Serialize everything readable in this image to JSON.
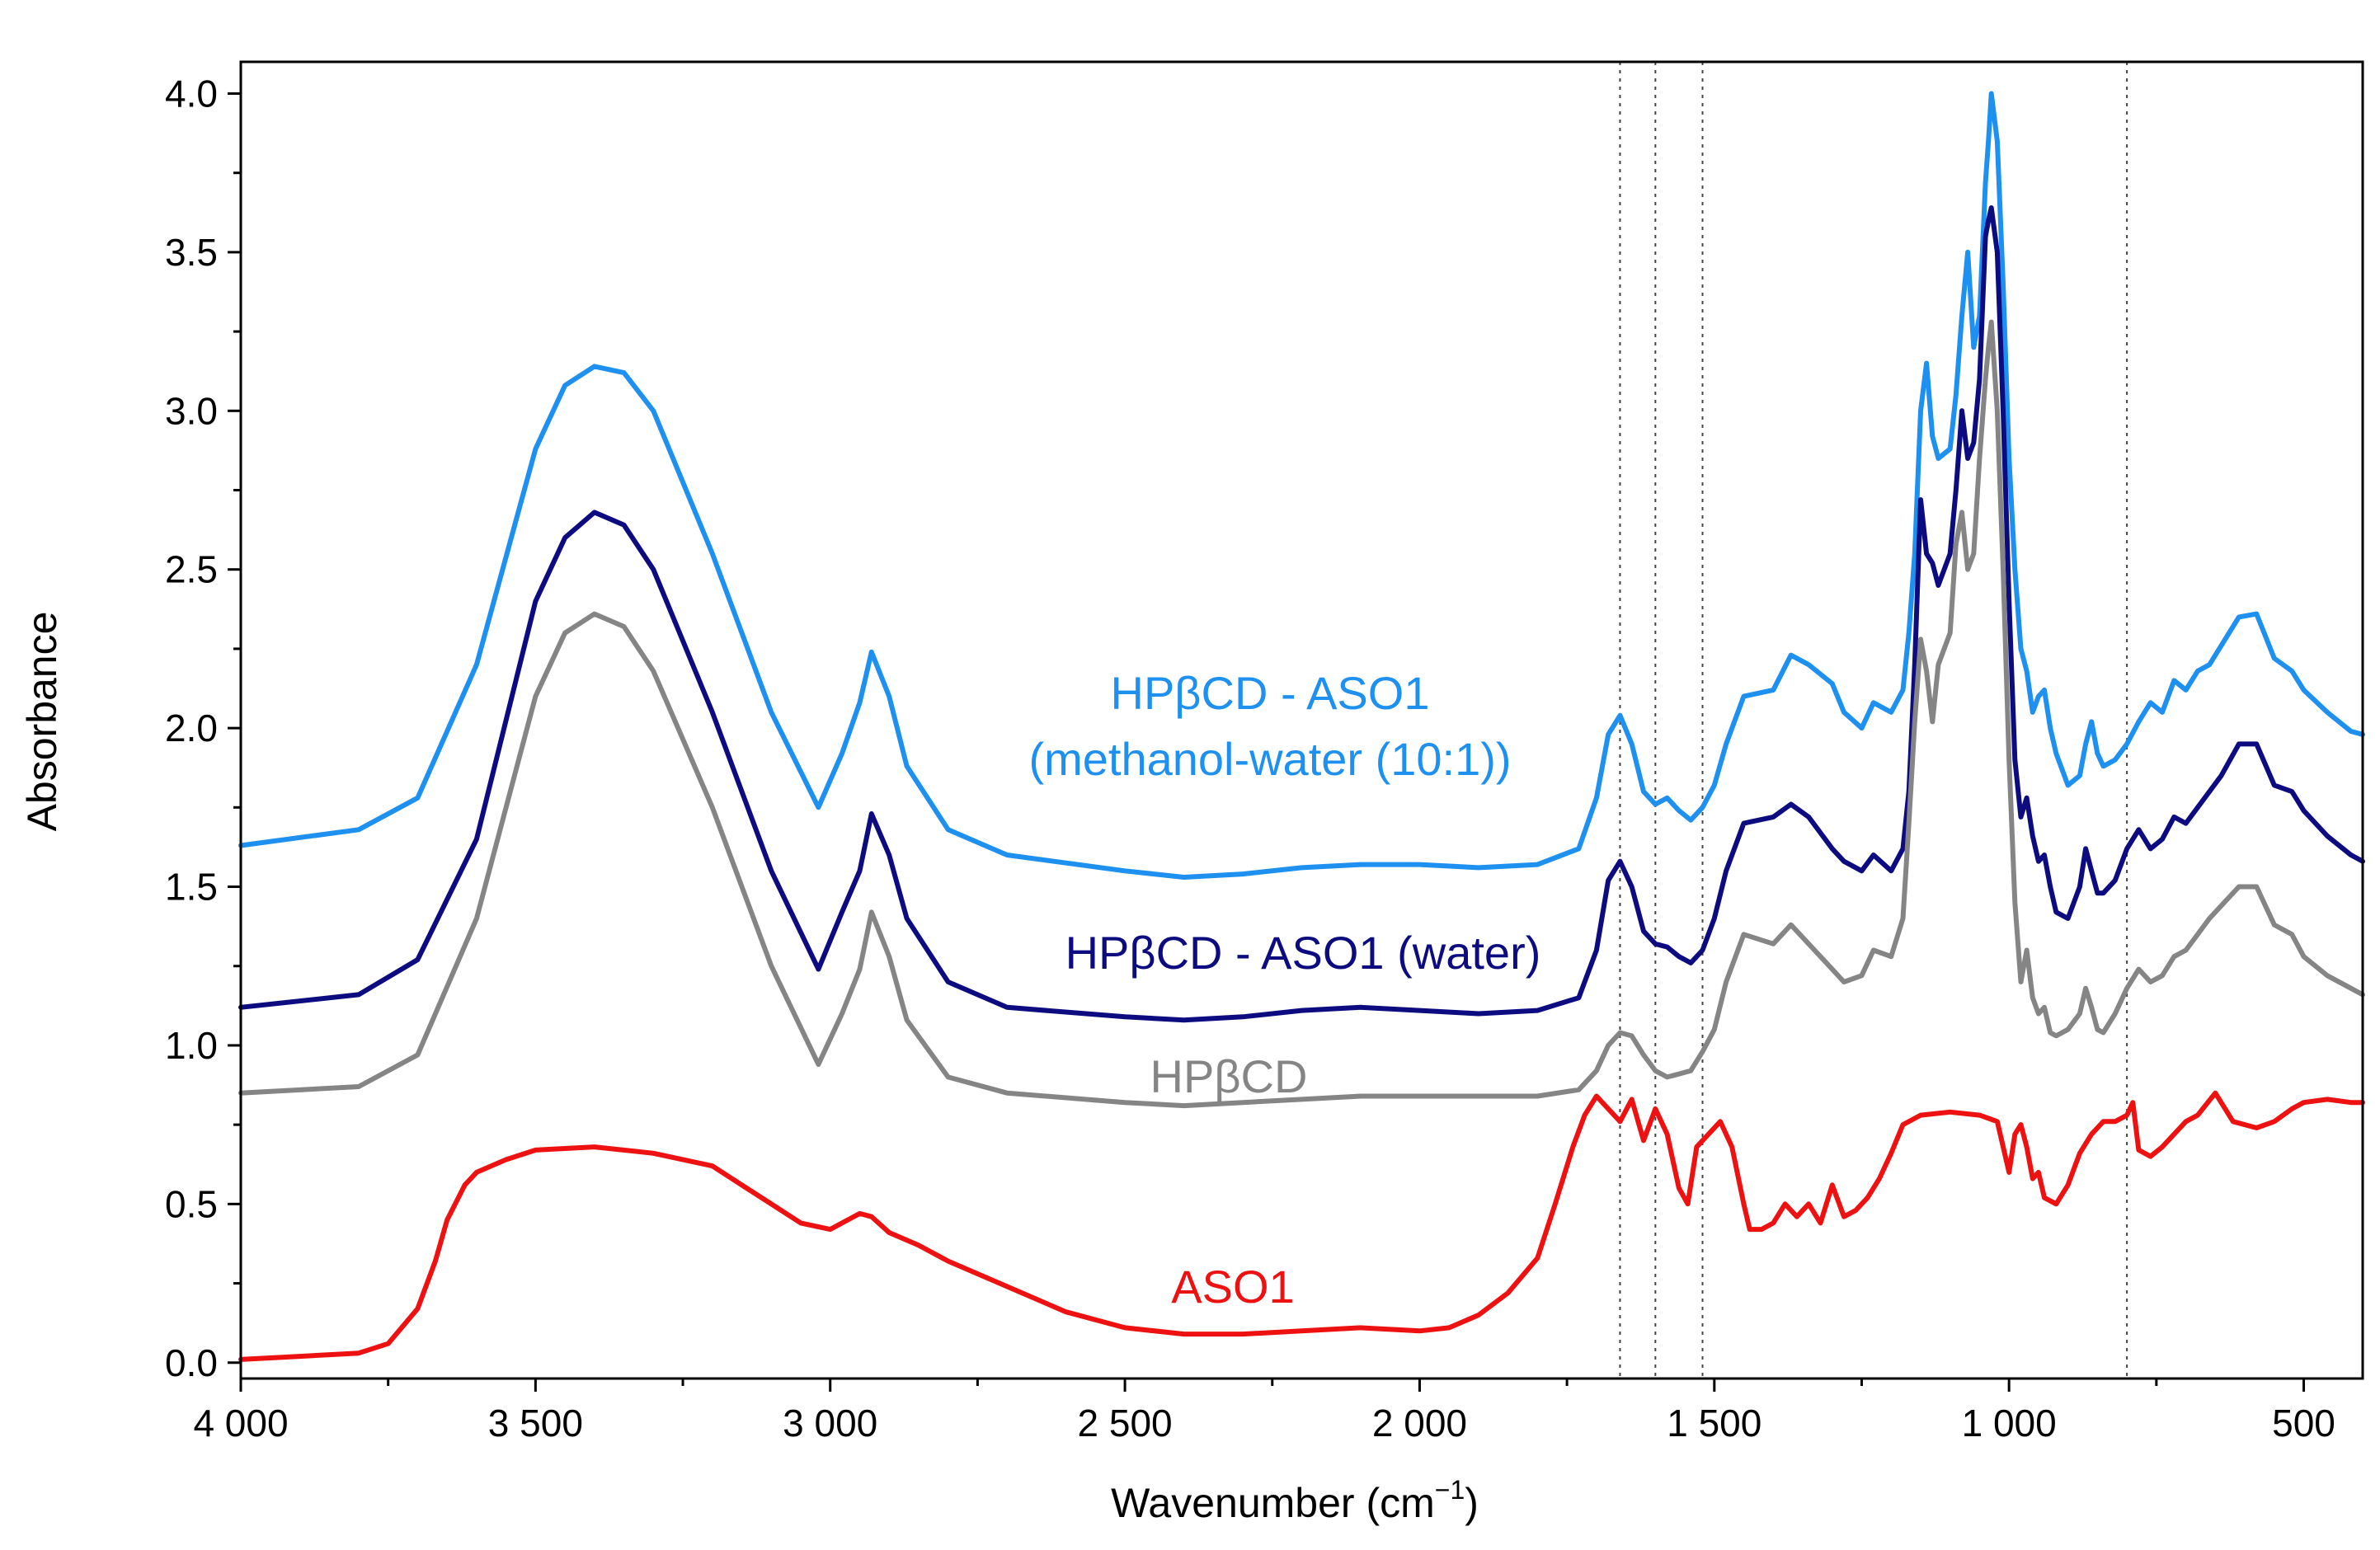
{
  "chart_data": {
    "type": "line",
    "title": "",
    "xlabel": "Wavenumber (cm",
    "xlabel_sup": "−1",
    "xlabel_close": ")",
    "ylabel": "Absorbance",
    "xlim": [
      4000,
      400
    ],
    "ylim": [
      -0.05,
      4.1
    ],
    "x_ticks": [
      4000,
      3500,
      3000,
      2500,
      2000,
      1500,
      1000,
      500
    ],
    "x_tick_labels": [
      "4 000",
      "3 500",
      "3 000",
      "2 500",
      "2 000",
      "1 500",
      "1 000",
      "500"
    ],
    "y_ticks": [
      0.0,
      0.5,
      1.0,
      1.5,
      2.0,
      2.5,
      3.0,
      3.5,
      4.0
    ],
    "y_tick_labels": [
      "0.0",
      "0.5",
      "1.0",
      "1.5",
      "2.0",
      "2.5",
      "3.0",
      "3.5",
      "4.0"
    ],
    "reference_lines": [
      1660,
      1600,
      1520,
      800
    ],
    "series": [
      {
        "name": "HPβCD - ASO1 (methanol-water (10:1))",
        "label_lines": [
          "HPβCD - ASO1",
          "(methanol-water (10:1))"
        ],
        "color": "#1E90F0",
        "x": [
          4000,
          3800,
          3700,
          3600,
          3500,
          3450,
          3400,
          3350,
          3300,
          3200,
          3100,
          3020,
          2980,
          2950,
          2930,
          2900,
          2870,
          2800,
          2700,
          2500,
          2400,
          2300,
          2200,
          2100,
          2000,
          1900,
          1800,
          1730,
          1700,
          1680,
          1660,
          1640,
          1620,
          1600,
          1580,
          1560,
          1540,
          1520,
          1500,
          1480,
          1450,
          1400,
          1370,
          1340,
          1300,
          1280,
          1250,
          1230,
          1200,
          1180,
          1170,
          1160,
          1150,
          1140,
          1130,
          1120,
          1100,
          1090,
          1080,
          1070,
          1060,
          1050,
          1040,
          1035,
          1030,
          1020,
          1010,
          1000,
          990,
          980,
          970,
          960,
          950,
          940,
          930,
          920,
          900,
          880,
          870,
          860,
          850,
          840,
          820,
          800,
          780,
          760,
          740,
          720,
          700,
          680,
          660,
          640,
          610,
          580,
          550,
          520,
          500,
          460,
          420,
          400
        ],
        "values": [
          1.63,
          1.68,
          1.78,
          2.2,
          2.88,
          3.08,
          3.14,
          3.12,
          3.0,
          2.55,
          2.05,
          1.75,
          1.92,
          2.08,
          2.24,
          2.1,
          1.88,
          1.68,
          1.6,
          1.55,
          1.53,
          1.54,
          1.56,
          1.57,
          1.57,
          1.56,
          1.57,
          1.62,
          1.78,
          1.98,
          2.04,
          1.95,
          1.8,
          1.76,
          1.78,
          1.74,
          1.71,
          1.75,
          1.82,
          1.95,
          2.1,
          2.12,
          2.23,
          2.2,
          2.14,
          2.05,
          2.0,
          2.08,
          2.05,
          2.12,
          2.3,
          2.55,
          3.0,
          3.15,
          2.92,
          2.85,
          2.88,
          3.05,
          3.3,
          3.5,
          3.2,
          3.3,
          3.72,
          3.85,
          4.0,
          3.85,
          3.4,
          2.85,
          2.5,
          2.25,
          2.18,
          2.05,
          2.1,
          2.12,
          2.0,
          1.92,
          1.82,
          1.85,
          1.95,
          2.02,
          1.92,
          1.88,
          1.9,
          1.95,
          2.02,
          2.08,
          2.05,
          2.15,
          2.12,
          2.18,
          2.2,
          2.26,
          2.35,
          2.36,
          2.22,
          2.18,
          2.12,
          2.05,
          1.99,
          1.98
        ]
      },
      {
        "name": "HPβCD - ASO1 (water)",
        "label_lines": [
          "HPβCD - ASO1 (water)"
        ],
        "color": "#0C0C80",
        "x": [
          4000,
          3800,
          3700,
          3600,
          3500,
          3450,
          3400,
          3350,
          3300,
          3200,
          3100,
          3020,
          2980,
          2950,
          2930,
          2900,
          2870,
          2800,
          2700,
          2500,
          2400,
          2300,
          2200,
          2100,
          2000,
          1900,
          1800,
          1730,
          1700,
          1680,
          1660,
          1640,
          1620,
          1600,
          1580,
          1560,
          1540,
          1520,
          1500,
          1480,
          1450,
          1400,
          1370,
          1340,
          1300,
          1280,
          1250,
          1230,
          1200,
          1180,
          1170,
          1160,
          1150,
          1140,
          1130,
          1120,
          1100,
          1090,
          1080,
          1070,
          1060,
          1050,
          1040,
          1035,
          1030,
          1020,
          1010,
          1000,
          990,
          980,
          970,
          960,
          950,
          940,
          930,
          920,
          900,
          880,
          870,
          860,
          850,
          840,
          820,
          800,
          780,
          760,
          740,
          720,
          700,
          680,
          660,
          640,
          610,
          580,
          550,
          520,
          500,
          460,
          420,
          400
        ],
        "values": [
          1.12,
          1.16,
          1.27,
          1.65,
          2.4,
          2.6,
          2.68,
          2.64,
          2.5,
          2.05,
          1.55,
          1.24,
          1.42,
          1.55,
          1.73,
          1.6,
          1.4,
          1.2,
          1.12,
          1.09,
          1.08,
          1.09,
          1.11,
          1.12,
          1.11,
          1.1,
          1.11,
          1.15,
          1.3,
          1.52,
          1.58,
          1.5,
          1.36,
          1.32,
          1.31,
          1.28,
          1.26,
          1.3,
          1.4,
          1.55,
          1.7,
          1.72,
          1.76,
          1.72,
          1.62,
          1.58,
          1.55,
          1.6,
          1.55,
          1.62,
          1.8,
          2.2,
          2.72,
          2.55,
          2.52,
          2.45,
          2.55,
          2.75,
          3.0,
          2.85,
          2.9,
          3.1,
          3.55,
          3.6,
          3.64,
          3.5,
          3.0,
          2.4,
          1.9,
          1.72,
          1.78,
          1.66,
          1.58,
          1.6,
          1.5,
          1.42,
          1.4,
          1.5,
          1.62,
          1.55,
          1.48,
          1.48,
          1.52,
          1.62,
          1.68,
          1.62,
          1.65,
          1.72,
          1.7,
          1.75,
          1.8,
          1.85,
          1.95,
          1.95,
          1.82,
          1.8,
          1.74,
          1.66,
          1.6,
          1.58
        ]
      },
      {
        "name": "HPβCD",
        "label_lines": [
          "HPβCD"
        ],
        "color": "#858585",
        "x": [
          4000,
          3800,
          3700,
          3600,
          3500,
          3450,
          3400,
          3350,
          3300,
          3200,
          3100,
          3020,
          2980,
          2950,
          2930,
          2900,
          2870,
          2800,
          2700,
          2500,
          2400,
          2300,
          2200,
          2100,
          2000,
          1900,
          1800,
          1730,
          1700,
          1680,
          1660,
          1640,
          1620,
          1600,
          1580,
          1560,
          1540,
          1520,
          1500,
          1480,
          1450,
          1400,
          1370,
          1340,
          1300,
          1280,
          1250,
          1230,
          1200,
          1180,
          1170,
          1160,
          1150,
          1140,
          1130,
          1120,
          1100,
          1090,
          1080,
          1070,
          1060,
          1050,
          1040,
          1035,
          1030,
          1020,
          1010,
          1000,
          990,
          980,
          970,
          960,
          950,
          940,
          930,
          920,
          900,
          880,
          870,
          860,
          850,
          840,
          820,
          800,
          780,
          760,
          740,
          720,
          700,
          680,
          660,
          640,
          610,
          580,
          550,
          520,
          500,
          460,
          420,
          400
        ],
        "values": [
          0.85,
          0.87,
          0.97,
          1.4,
          2.1,
          2.3,
          2.36,
          2.32,
          2.18,
          1.75,
          1.25,
          0.94,
          1.1,
          1.24,
          1.42,
          1.28,
          1.08,
          0.9,
          0.85,
          0.82,
          0.81,
          0.82,
          0.83,
          0.84,
          0.84,
          0.84,
          0.84,
          0.86,
          0.92,
          1.0,
          1.04,
          1.03,
          0.97,
          0.92,
          0.9,
          0.91,
          0.92,
          0.98,
          1.05,
          1.2,
          1.35,
          1.32,
          1.38,
          1.32,
          1.24,
          1.2,
          1.22,
          1.3,
          1.28,
          1.4,
          1.7,
          2.02,
          2.28,
          2.18,
          2.02,
          2.2,
          2.3,
          2.58,
          2.68,
          2.5,
          2.55,
          2.85,
          3.1,
          3.2,
          3.28,
          3.0,
          2.5,
          1.9,
          1.45,
          1.2,
          1.3,
          1.15,
          1.1,
          1.12,
          1.04,
          1.03,
          1.05,
          1.1,
          1.18,
          1.12,
          1.05,
          1.04,
          1.1,
          1.18,
          1.24,
          1.2,
          1.22,
          1.28,
          1.3,
          1.35,
          1.4,
          1.44,
          1.5,
          1.5,
          1.38,
          1.35,
          1.28,
          1.22,
          1.18,
          1.16
        ]
      },
      {
        "name": "ASO1",
        "label_lines": [
          "ASO1"
        ],
        "color": "#EE1111",
        "x": [
          4000,
          3900,
          3800,
          3750,
          3700,
          3670,
          3650,
          3620,
          3600,
          3550,
          3500,
          3400,
          3300,
          3200,
          3150,
          3100,
          3050,
          3000,
          2980,
          2950,
          2930,
          2900,
          2850,
          2800,
          2700,
          2600,
          2500,
          2400,
          2300,
          2200,
          2100,
          2000,
          1950,
          1900,
          1850,
          1800,
          1770,
          1740,
          1720,
          1700,
          1680,
          1660,
          1640,
          1620,
          1600,
          1580,
          1560,
          1545,
          1530,
          1510,
          1490,
          1470,
          1450,
          1440,
          1420,
          1400,
          1380,
          1360,
          1340,
          1320,
          1300,
          1280,
          1260,
          1240,
          1220,
          1200,
          1180,
          1150,
          1100,
          1050,
          1020,
          1000,
          990,
          980,
          970,
          960,
          950,
          940,
          920,
          900,
          880,
          860,
          840,
          820,
          800,
          790,
          780,
          760,
          740,
          720,
          700,
          680,
          650,
          620,
          580,
          550,
          520,
          500,
          460,
          420,
          400
        ],
        "values": [
          0.01,
          0.02,
          0.03,
          0.06,
          0.17,
          0.32,
          0.45,
          0.56,
          0.6,
          0.64,
          0.67,
          0.68,
          0.66,
          0.62,
          0.56,
          0.5,
          0.44,
          0.42,
          0.44,
          0.47,
          0.46,
          0.41,
          0.37,
          0.32,
          0.24,
          0.16,
          0.11,
          0.09,
          0.09,
          0.1,
          0.11,
          0.1,
          0.11,
          0.15,
          0.22,
          0.33,
          0.5,
          0.68,
          0.78,
          0.84,
          0.8,
          0.76,
          0.83,
          0.7,
          0.8,
          0.72,
          0.55,
          0.5,
          0.68,
          0.72,
          0.76,
          0.68,
          0.5,
          0.42,
          0.42,
          0.44,
          0.5,
          0.46,
          0.5,
          0.44,
          0.56,
          0.46,
          0.48,
          0.52,
          0.58,
          0.66,
          0.75,
          0.78,
          0.79,
          0.78,
          0.76,
          0.6,
          0.72,
          0.75,
          0.68,
          0.58,
          0.6,
          0.52,
          0.5,
          0.56,
          0.66,
          0.72,
          0.76,
          0.76,
          0.78,
          0.82,
          0.67,
          0.65,
          0.68,
          0.72,
          0.76,
          0.78,
          0.85,
          0.76,
          0.74,
          0.76,
          0.8,
          0.82,
          0.83,
          0.82,
          0.82
        ]
      }
    ]
  }
}
